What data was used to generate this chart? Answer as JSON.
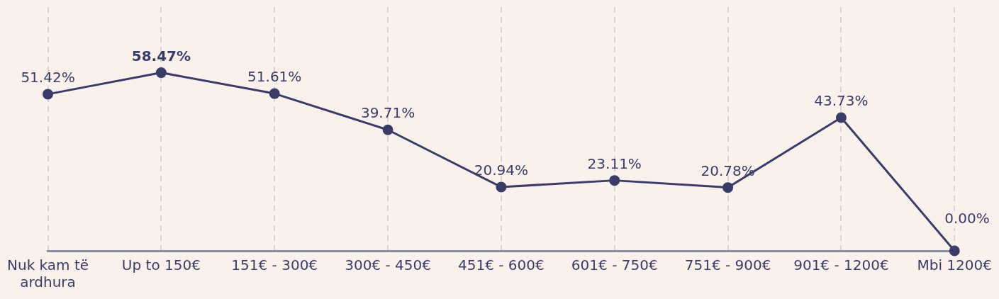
{
  "chart_data": {
    "type": "line",
    "categories": [
      "Nuk kam të ardhura",
      "Up to 150€",
      "151€ - 300€",
      "300€ - 450€",
      "451€ - 600€",
      "601€ - 750€",
      "751€ - 900€",
      "901€ - 1200€",
      "Mbi 1200€"
    ],
    "series": [
      {
        "color": "#3a3c68",
        "values": [
          51.42,
          58.47,
          51.61,
          39.71,
          20.94,
          23.11,
          20.78,
          43.73,
          0.0
        ],
        "value_labels": [
          "51.42%",
          "58.47%",
          "51.61%",
          "39.71%",
          "20.94%",
          "23.11%",
          "20.78%",
          "43.73%",
          "0.00%"
        ]
      }
    ],
    "grid": "x",
    "marker": "circle"
  }
}
